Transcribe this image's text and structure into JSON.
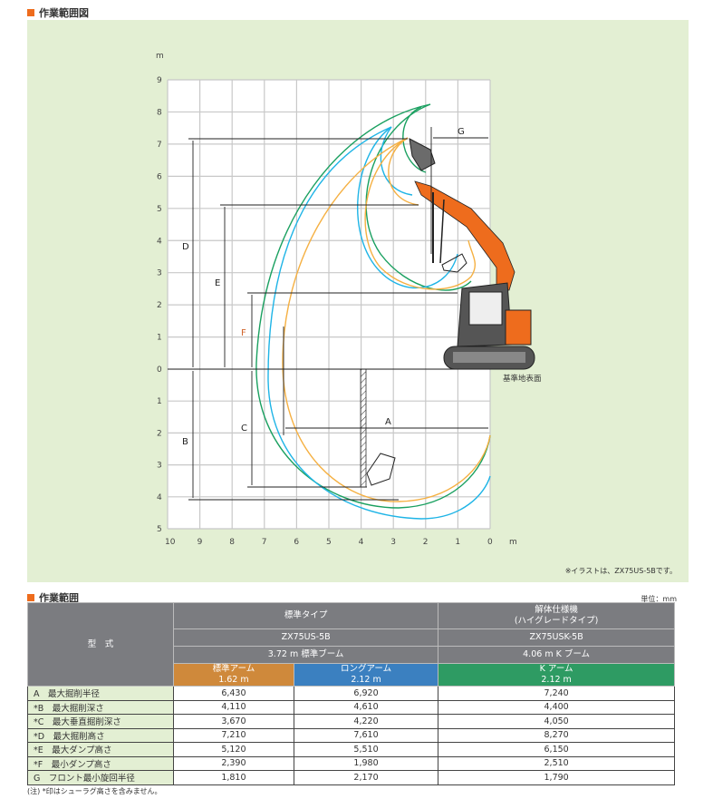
{
  "diagram": {
    "title": "作業範囲図",
    "y_unit": "m",
    "x_unit": "m",
    "y_ticks_up": [
      "9",
      "8",
      "7",
      "6",
      "5",
      "4",
      "3",
      "2",
      "1",
      "0"
    ],
    "y_ticks_down": [
      "1",
      "2",
      "3",
      "4",
      "5"
    ],
    "x_ticks": [
      "10",
      "9",
      "8",
      "7",
      "6",
      "5",
      "4",
      "3",
      "2",
      "1",
      "0"
    ],
    "dimension_labels": {
      "A": "A",
      "B": "B",
      "C": "C",
      "D": "D",
      "E": "E",
      "F": "F",
      "G": "G"
    },
    "ground_label": "基準地表面",
    "note": "※イラストは、ZX75US-5Bです。",
    "colors": {
      "standard_arm": "#f5b042",
      "long_arm": "#1eb4e6",
      "k_arm": "#1aa060",
      "machine": "#ee6c1d"
    }
  },
  "table": {
    "title": "作業範囲",
    "unit": "単位：mm",
    "model_label": "型　式",
    "type_standard": "標準タイプ",
    "type_demolition": "解体仕様機\n(ハイグレードタイプ)",
    "model_standard": "ZX75US-5B",
    "model_demolition": "ZX75USK-5B",
    "boom_standard": "3.72 m 標準ブーム",
    "boom_demolition": "4.06 m K ブーム",
    "arms": [
      {
        "name": "標準アーム",
        "length": "1.62 m",
        "color": "#cf893b"
      },
      {
        "name": "ロングアーム",
        "length": "2.12 m",
        "color": "#3b80c0"
      },
      {
        "name": "K アーム",
        "length": "2.12 m",
        "color": "#2e9b63"
      }
    ],
    "rows": [
      {
        "label": "A　最大掘削半径",
        "values": [
          "6,430",
          "6,920",
          "7,240"
        ]
      },
      {
        "label": "*B　最大掘削深さ",
        "values": [
          "4,110",
          "4,610",
          "4,400"
        ]
      },
      {
        "label": "*C　最大垂直掘削深さ",
        "values": [
          "3,670",
          "4,220",
          "4,050"
        ]
      },
      {
        "label": "*D　最大掘削高さ",
        "values": [
          "7,210",
          "7,610",
          "8,270"
        ]
      },
      {
        "label": "*E　最大ダンプ高さ",
        "values": [
          "5,120",
          "5,510",
          "6,150"
        ]
      },
      {
        "label": "*F　最小ダンプ高さ",
        "values": [
          "2,390",
          "1,980",
          "2,510"
        ]
      },
      {
        "label": "G　フロント最小旋回半径",
        "values": [
          "1,810",
          "2,170",
          "1,790"
        ]
      }
    ],
    "footnote": "(注) *印はシューラグ高さを含みません。"
  }
}
